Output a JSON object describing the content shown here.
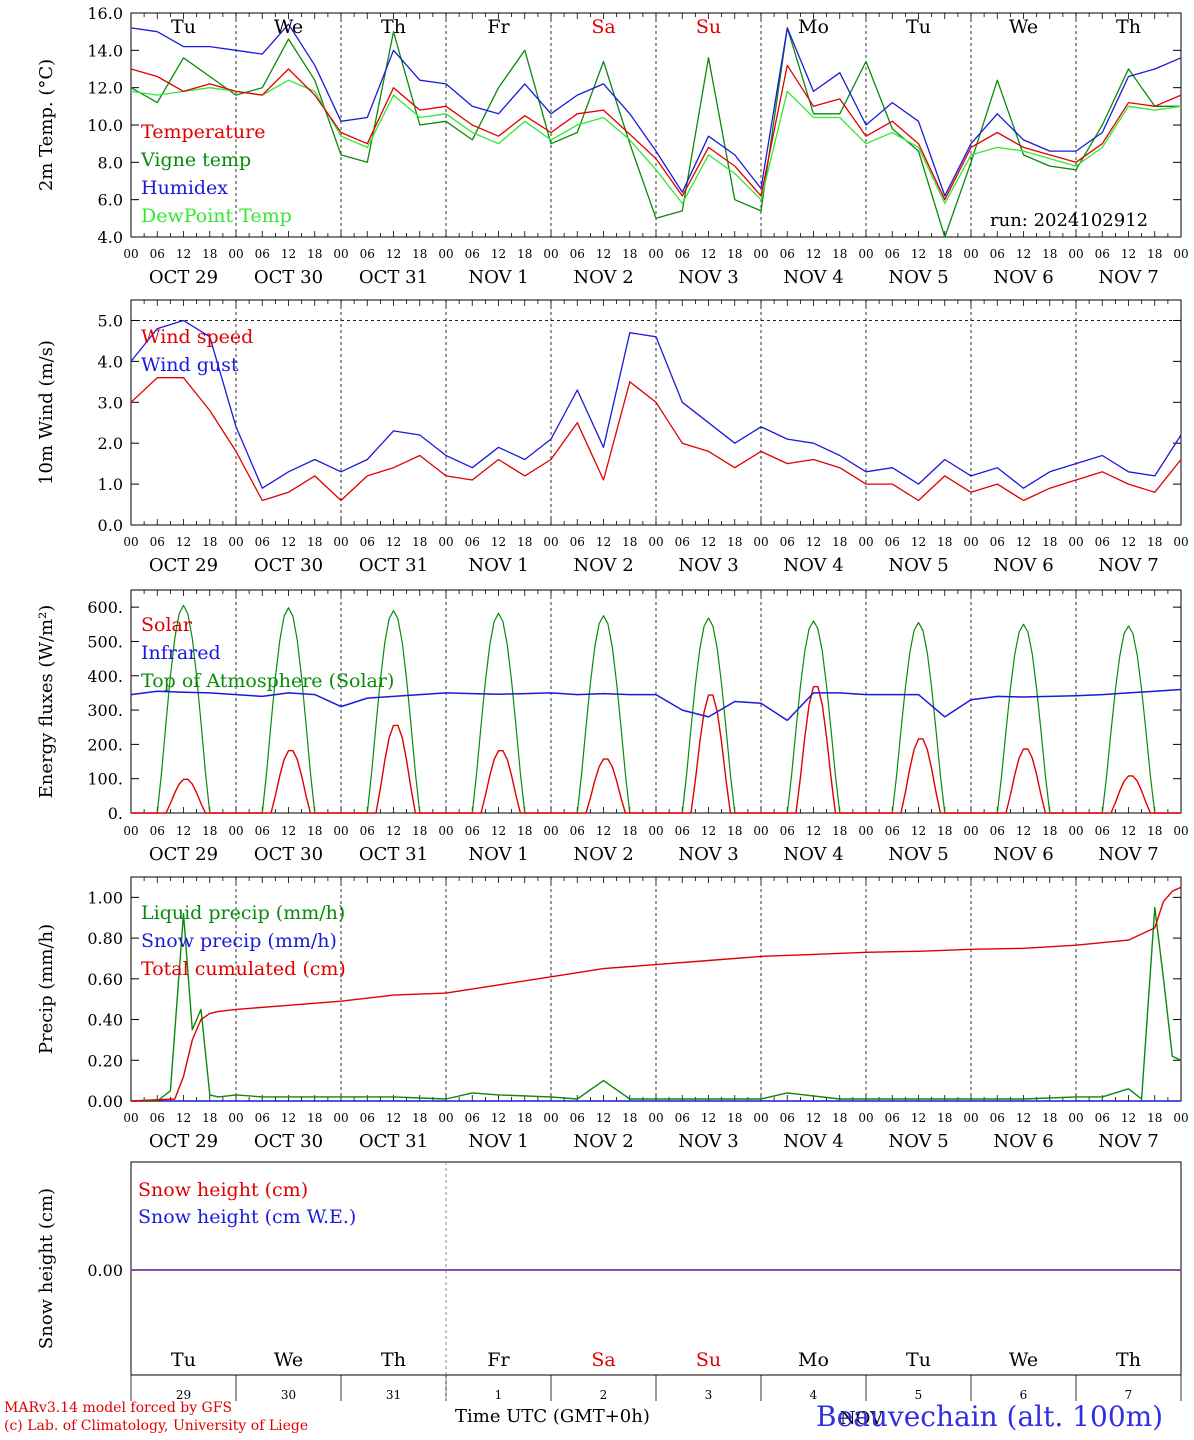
{
  "run_label": "run: 2024102912",
  "footer": {
    "model": "MARv3.14 model forced by GFS",
    "copyright": "(c) Lab. of Climatology, University of Liege",
    "time_axis": "Time UTC (GMT+0h)",
    "station": "Beauvechain (alt. 100m)",
    "month": "NOV"
  },
  "colors": {
    "red": "#e00000",
    "green": "#0a8a0a",
    "blue": "#1a1adc",
    "lightgreen": "#33e833",
    "purple": "#7a3a9a"
  },
  "weekdays": [
    {
      "label": "Tu",
      "color": "#000000"
    },
    {
      "label": "We",
      "color": "#000000"
    },
    {
      "label": "Th",
      "color": "#000000"
    },
    {
      "label": "Fr",
      "color": "#000000"
    },
    {
      "label": "Sa",
      "color": "#e00000"
    },
    {
      "label": "Su",
      "color": "#e00000"
    },
    {
      "label": "Mo",
      "color": "#000000"
    },
    {
      "label": "Tu",
      "color": "#000000"
    },
    {
      "label": "We",
      "color": "#000000"
    },
    {
      "label": "Th",
      "color": "#000000"
    }
  ],
  "date_labels": [
    "OCT 29",
    "OCT 30",
    "OCT 31",
    "NOV  1",
    "NOV  2",
    "NOV  3",
    "NOV  4",
    "NOV  5",
    "NOV  6",
    "NOV  7"
  ],
  "day_numbers": [
    "29",
    "30",
    "31",
    "1",
    "2",
    "3",
    "4",
    "5",
    "6",
    "7"
  ],
  "hour_ticks": [
    "00",
    "06",
    "12",
    "18"
  ],
  "chart_data": [
    {
      "type": "line",
      "ylabel": "2m Temp. (°C)",
      "ylim": [
        4.0,
        16.0
      ],
      "yticks": [
        "4.0",
        "6.0",
        "8.0",
        "10.0",
        "12.0",
        "14.0",
        "16.0"
      ],
      "x_hours": [
        0,
        6,
        12,
        18,
        24,
        30,
        36,
        42,
        48,
        54,
        60,
        66,
        72,
        78,
        84,
        90,
        96,
        102,
        108,
        114,
        120,
        126,
        132,
        138,
        144,
        150,
        156,
        162,
        168,
        174,
        180,
        186,
        192,
        198,
        204,
        210,
        216,
        222,
        228,
        234,
        240
      ],
      "series": [
        {
          "name": "Temperature",
          "color": "#e00000",
          "values": [
            13.0,
            12.6,
            11.8,
            12.2,
            11.8,
            11.6,
            13.0,
            11.6,
            9.6,
            9.0,
            12.0,
            10.8,
            11.0,
            10.0,
            9.4,
            10.5,
            9.6,
            10.6,
            10.8,
            9.5,
            8.2,
            6.2,
            8.8,
            7.8,
            6.2,
            13.2,
            11.0,
            11.4,
            9.4,
            10.2,
            9.0,
            6.0,
            8.8,
            9.6,
            8.8,
            8.4,
            8.0,
            9.0,
            11.2,
            11.0,
            11.6
          ]
        },
        {
          "name": "Vigne temp",
          "color": "#0a8a0a",
          "values": [
            12.0,
            11.2,
            13.6,
            12.6,
            11.6,
            12.0,
            14.6,
            12.4,
            8.4,
            8.0,
            15.0,
            10.0,
            10.2,
            9.2,
            12.0,
            14.0,
            9.0,
            9.6,
            13.4,
            9.0,
            5.0,
            5.4,
            13.6,
            6.0,
            5.4,
            15.2,
            10.6,
            10.6,
            13.4,
            9.8,
            8.6,
            3.8,
            8.0,
            12.4,
            8.4,
            7.8,
            7.6,
            10.0,
            13.0,
            11.0,
            11.0
          ]
        },
        {
          "name": "Humidex",
          "color": "#1a1adc",
          "values": [
            15.2,
            15.0,
            14.2,
            14.2,
            14.0,
            13.8,
            15.4,
            13.2,
            10.2,
            10.4,
            14.0,
            12.4,
            12.2,
            11.0,
            10.6,
            12.2,
            10.6,
            11.6,
            12.2,
            10.6,
            8.6,
            6.4,
            9.4,
            8.4,
            6.6,
            15.2,
            11.8,
            12.8,
            10.0,
            11.2,
            10.2,
            6.2,
            9.0,
            10.6,
            9.2,
            8.6,
            8.6,
            9.6,
            12.6,
            13.0,
            13.6
          ]
        },
        {
          "name": "DewPoint Temp",
          "color": "#33e833",
          "values": [
            11.8,
            11.6,
            11.8,
            12.0,
            11.8,
            11.6,
            12.4,
            11.8,
            9.4,
            8.8,
            11.6,
            10.4,
            10.6,
            9.6,
            9.0,
            10.2,
            9.2,
            10.0,
            10.4,
            9.2,
            7.6,
            5.8,
            8.4,
            7.4,
            6.0,
            11.8,
            10.4,
            10.4,
            9.0,
            9.6,
            8.8,
            5.8,
            8.4,
            8.8,
            8.6,
            8.2,
            7.8,
            8.8,
            11.0,
            10.8,
            11.0
          ]
        }
      ]
    },
    {
      "type": "line",
      "ylabel": "10m Wind (m/s)",
      "ylim": [
        0.0,
        5.5
      ],
      "yticks": [
        "0.0",
        "1.0",
        "2.0",
        "3.0",
        "4.0",
        "5.0"
      ],
      "x_hours": [
        0,
        6,
        12,
        18,
        24,
        30,
        36,
        42,
        48,
        54,
        60,
        66,
        72,
        78,
        84,
        90,
        96,
        102,
        108,
        114,
        120,
        126,
        132,
        138,
        144,
        150,
        156,
        162,
        168,
        174,
        180,
        186,
        192,
        198,
        204,
        210,
        216,
        222,
        228,
        234,
        240
      ],
      "series": [
        {
          "name": "Wind speed",
          "color": "#e00000",
          "values": [
            3.0,
            3.6,
            3.6,
            2.8,
            1.8,
            0.6,
            0.8,
            1.2,
            0.6,
            1.2,
            1.4,
            1.7,
            1.2,
            1.1,
            1.6,
            1.2,
            1.6,
            2.5,
            1.1,
            3.5,
            3.0,
            2.0,
            1.8,
            1.4,
            1.8,
            1.5,
            1.6,
            1.4,
            1.0,
            1.0,
            0.6,
            1.2,
            0.8,
            1.0,
            0.6,
            0.9,
            1.1,
            1.3,
            1.0,
            0.8,
            1.6
          ]
        },
        {
          "name": "Wind gust",
          "color": "#1a1adc",
          "values": [
            4.0,
            4.8,
            5.0,
            4.6,
            2.4,
            0.9,
            1.3,
            1.6,
            1.3,
            1.6,
            2.3,
            2.2,
            1.7,
            1.4,
            1.9,
            1.6,
            2.1,
            3.3,
            1.9,
            4.7,
            4.6,
            3.0,
            2.5,
            2.0,
            2.4,
            2.1,
            2.0,
            1.7,
            1.3,
            1.4,
            1.0,
            1.6,
            1.2,
            1.4,
            0.9,
            1.3,
            1.5,
            1.7,
            1.3,
            1.2,
            2.2
          ]
        }
      ],
      "reference_line": 5.0
    },
    {
      "type": "line",
      "ylabel": "Energy fluxes (W/m²)",
      "ylim": [
        0,
        650
      ],
      "yticks": [
        "0.",
        "100.",
        "200.",
        "300.",
        "400.",
        "500.",
        "600."
      ],
      "day_peaks": {
        "Solar": [
          100,
          185,
          260,
          185,
          160,
          350,
          375,
          220,
          190,
          110
        ],
        "Top of Atmosphere (Solar)": [
          605,
          598,
          590,
          582,
          575,
          568,
          560,
          555,
          550,
          545
        ]
      },
      "series": [
        {
          "name": "Solar",
          "color": "#e00000"
        },
        {
          "name": "Infrared",
          "color": "#1a1adc",
          "x_hours": [
            0,
            6,
            12,
            18,
            24,
            30,
            36,
            42,
            48,
            54,
            60,
            66,
            72,
            78,
            84,
            90,
            96,
            102,
            108,
            114,
            120,
            126,
            132,
            138,
            144,
            150,
            156,
            162,
            168,
            174,
            180,
            186,
            192,
            198,
            204,
            210,
            216,
            222,
            228,
            234,
            240
          ],
          "values": [
            345,
            355,
            352,
            350,
            345,
            340,
            350,
            345,
            310,
            335,
            340,
            345,
            350,
            348,
            346,
            348,
            350,
            345,
            348,
            345,
            345,
            300,
            280,
            325,
            320,
            270,
            350,
            350,
            345,
            345,
            345,
            280,
            330,
            340,
            338,
            340,
            342,
            345,
            350,
            355,
            360
          ]
        },
        {
          "name": "Top of Atmosphere (Solar)",
          "color": "#0a8a0a"
        }
      ]
    },
    {
      "type": "line",
      "ylabel": "Precip (mm/h)",
      "ylim": [
        0.0,
        1.1
      ],
      "yticks": [
        "0.00",
        "0.20",
        "0.40",
        "0.60",
        "0.80",
        "1.00"
      ],
      "series": [
        {
          "name": "Liquid precip (mm/h)",
          "color": "#0a8a0a",
          "x_hours": [
            0,
            6,
            9,
            12,
            14,
            16,
            18,
            20,
            24,
            30,
            36,
            48,
            60,
            72,
            78,
            84,
            96,
            102,
            108,
            114,
            120,
            132,
            144,
            150,
            162,
            168,
            180,
            192,
            204,
            216,
            222,
            228,
            231,
            234,
            236,
            238,
            240
          ],
          "values": [
            0,
            0,
            0.05,
            0.92,
            0.35,
            0.45,
            0.03,
            0.02,
            0.03,
            0.02,
            0.02,
            0.02,
            0.02,
            0.01,
            0.04,
            0.03,
            0.02,
            0.01,
            0.1,
            0.01,
            0.01,
            0.01,
            0.01,
            0.04,
            0.01,
            0.01,
            0.01,
            0.01,
            0.01,
            0.02,
            0.02,
            0.06,
            0.01,
            0.95,
            0.6,
            0.22,
            0.2
          ]
        },
        {
          "name": "Snow precip (mm/h)",
          "color": "#1a1adc",
          "x_hours": [
            0,
            240
          ],
          "values": [
            0,
            0
          ]
        },
        {
          "name": "Total cumulated (cm)",
          "color": "#e00000",
          "x_hours": [
            0,
            10,
            12,
            14,
            16,
            18,
            20,
            24,
            36,
            48,
            60,
            72,
            84,
            96,
            108,
            120,
            132,
            144,
            156,
            168,
            180,
            192,
            204,
            216,
            228,
            234,
            236,
            238,
            240
          ],
          "values": [
            0,
            0.01,
            0.12,
            0.3,
            0.4,
            0.43,
            0.44,
            0.45,
            0.47,
            0.49,
            0.52,
            0.53,
            0.57,
            0.61,
            0.65,
            0.67,
            0.69,
            0.71,
            0.72,
            0.73,
            0.735,
            0.745,
            0.75,
            0.765,
            0.79,
            0.85,
            0.98,
            1.03,
            1.05
          ]
        }
      ]
    },
    {
      "type": "line",
      "ylabel": "Snow height (cm)",
      "yticks": [
        "0.00"
      ],
      "series": [
        {
          "name": "Snow height (cm)",
          "color": "#e00000",
          "values": [
            0,
            0
          ]
        },
        {
          "name": "Snow height (cm W.E.)",
          "color": "#1a1adc",
          "values": [
            0,
            0
          ]
        }
      ]
    }
  ]
}
